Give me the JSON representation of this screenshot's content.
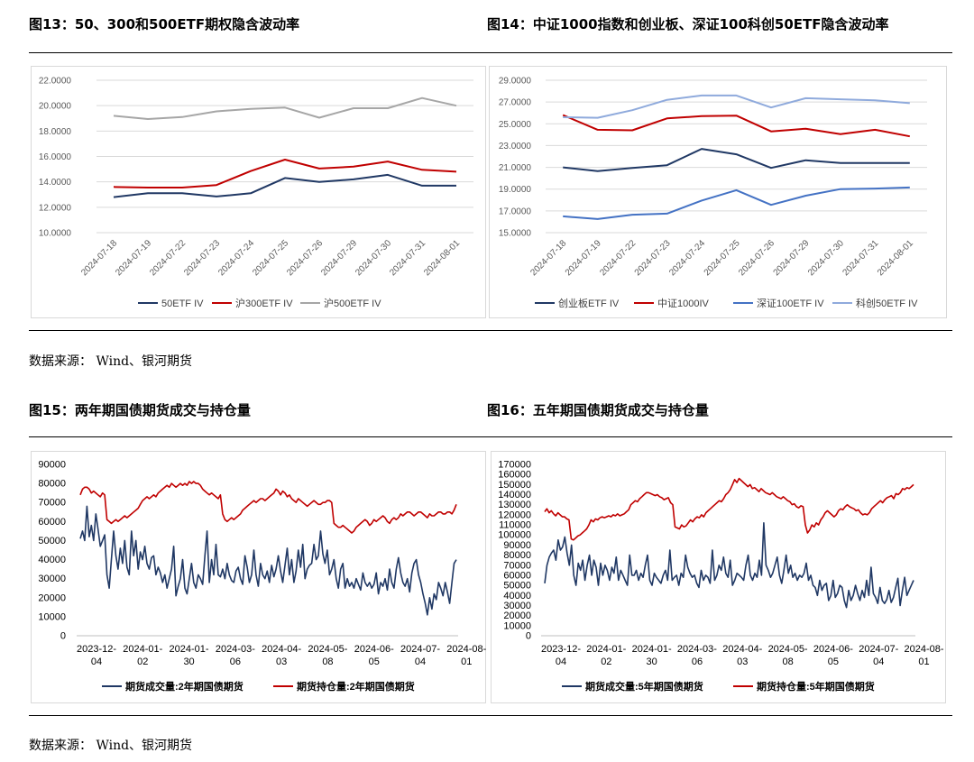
{
  "figures": {
    "f13": {
      "title": "图13：50、300和500ETF期权隐含波动率"
    },
    "f14": {
      "title": "图14：中证1000指数和创业板、深证100科创50ETF隐含波动率"
    },
    "f15": {
      "title": "图15：两年期国债期货成交与持仓量"
    },
    "f16": {
      "title": "图16：五年期国债期货成交与持仓量"
    }
  },
  "sources": {
    "top": "数据来源： Wind、银河期货",
    "bottom": "数据来源： Wind、银河期货"
  },
  "colors": {
    "navy": "#203864",
    "red": "#c00000",
    "gray": "#a6a6a6",
    "blue": "#4472c4",
    "lightblue": "#8faadc"
  },
  "chart_data": [
    {
      "id": "f13",
      "type": "line",
      "categories": [
        "2024-07-18",
        "2024-07-19",
        "2024-07-22",
        "2024-07-23",
        "2024-07-24",
        "2024-07-25",
        "2024-07-26",
        "2024-07-29",
        "2024-07-30",
        "2024-07-31",
        "2024-08-01"
      ],
      "y_ticks": [
        "10.0000",
        "12.0000",
        "14.0000",
        "16.0000",
        "18.0000",
        "20.0000",
        "22.0000"
      ],
      "ylim": [
        10,
        22
      ],
      "legend_position": "bottom",
      "series": [
        {
          "name": "50ETF IV",
          "color": "#203864",
          "values": [
            12.8,
            13.1,
            13.1,
            12.85,
            13.1,
            14.3,
            14.0,
            14.2,
            14.55,
            13.7,
            13.7
          ]
        },
        {
          "name": "沪300ETF IV",
          "color": "#c00000",
          "values": [
            13.6,
            13.55,
            13.55,
            13.75,
            14.85,
            15.75,
            15.05,
            15.2,
            15.6,
            14.95,
            14.8
          ]
        },
        {
          "name": "沪500ETF IV",
          "color": "#a6a6a6",
          "values": [
            19.2,
            18.95,
            19.1,
            19.55,
            19.75,
            19.85,
            19.05,
            19.8,
            19.8,
            20.6,
            20.0
          ]
        }
      ]
    },
    {
      "id": "f14",
      "type": "line",
      "categories": [
        "2024-07-18",
        "2024-07-19",
        "2024-07-22",
        "2024-07-23",
        "2024-07-24",
        "2024-07-25",
        "2024-07-26",
        "2024-07-29",
        "2024-07-30",
        "2024-07-31",
        "2024-08-01"
      ],
      "y_ticks": [
        "15.0000",
        "17.0000",
        "19.0000",
        "21.0000",
        "23.0000",
        "25.0000",
        "27.0000",
        "29.0000"
      ],
      "ylim": [
        15,
        29
      ],
      "legend_position": "bottom",
      "series": [
        {
          "name": "创业板ETF IV",
          "color": "#203864",
          "values": [
            21.0,
            20.65,
            20.95,
            21.2,
            22.7,
            22.2,
            20.95,
            21.65,
            21.4,
            21.4,
            21.4
          ]
        },
        {
          "name": "中证1000IV",
          "color": "#c00000",
          "values": [
            25.8,
            24.45,
            24.4,
            25.5,
            25.7,
            25.75,
            24.3,
            24.55,
            24.05,
            24.45,
            23.85
          ]
        },
        {
          "name": "深证100ETF IV",
          "color": "#4472c4",
          "values": [
            16.5,
            16.25,
            16.65,
            16.75,
            17.95,
            18.9,
            17.55,
            18.4,
            19.0,
            19.05,
            19.15
          ]
        },
        {
          "name": "科创50ETF IV",
          "color": "#8faadc",
          "values": [
            25.6,
            25.55,
            26.25,
            27.2,
            27.6,
            27.6,
            26.5,
            27.35,
            27.25,
            27.15,
            26.9
          ]
        }
      ]
    },
    {
      "id": "f15",
      "type": "line",
      "x_ticks": [
        [
          "2023-12-",
          "04"
        ],
        [
          "2024-01-",
          "02"
        ],
        [
          "2024-01-",
          "30"
        ],
        [
          "2024-03-",
          "06"
        ],
        [
          "2024-04-",
          "03"
        ],
        [
          "2024-05-",
          "08"
        ],
        [
          "2024-06-",
          "05"
        ],
        [
          "2024-07-",
          "04"
        ],
        [
          "2024-08-",
          "01"
        ]
      ],
      "y_ticks": [
        "0",
        "10000",
        "20000",
        "30000",
        "40000",
        "50000",
        "60000",
        "70000",
        "80000",
        "90000"
      ],
      "ylim": [
        0,
        90000
      ],
      "legend_position": "bottom",
      "series": [
        {
          "name": "期货成交量:2年期国债期货",
          "color": "#203864",
          "values": [
            51000,
            55000,
            50000,
            68000,
            52000,
            58000,
            50000,
            64000,
            56000,
            47000,
            50000,
            53000,
            32000,
            25000,
            40000,
            55000,
            42000,
            35000,
            46000,
            38000,
            50000,
            36000,
            32000,
            55000,
            42000,
            50000,
            35000,
            44000,
            40000,
            47000,
            38000,
            35000,
            41000,
            42000,
            32000,
            36000,
            33000,
            28000,
            32000,
            25000,
            30000,
            35000,
            47000,
            21000,
            26000,
            30000,
            40000,
            25000,
            22000,
            30000,
            38000,
            28000,
            25000,
            32000,
            30000,
            27000,
            42000,
            55000,
            28000,
            40000,
            32000,
            48000,
            32000,
            31000,
            35000,
            30000,
            38000,
            32000,
            29000,
            28000,
            34000,
            36000,
            30000,
            27000,
            42000,
            36000,
            28000,
            32000,
            45000,
            32000,
            26000,
            38000,
            32000,
            30000,
            34000,
            28000,
            37000,
            31000,
            35000,
            42000,
            34000,
            28000,
            37000,
            46000,
            32000,
            40000,
            28000,
            34000,
            45000,
            36000,
            48000,
            30000,
            35000,
            37000,
            38000,
            48000,
            40000,
            42000,
            55000,
            43000,
            38000,
            45000,
            32000,
            35000,
            40000,
            30000,
            25000,
            35000,
            38000,
            25000,
            30000,
            26000,
            28000,
            25000,
            30000,
            27000,
            24000,
            33000,
            28000,
            26000,
            28000,
            25000,
            27000,
            33000,
            22000,
            28000,
            26000,
            30000,
            24000,
            35000,
            28000,
            25000,
            35000,
            41000,
            33000,
            28000,
            26000,
            30000,
            23000,
            33000,
            38000,
            40000,
            32000,
            28000,
            22000,
            17000,
            11000,
            20000,
            14000,
            22000,
            19000,
            28000,
            25000,
            21000,
            28000,
            23000,
            17000,
            28000,
            38000,
            40000
          ]
        },
        {
          "name": "期货持仓量:2年期国债期货",
          "color": "#c00000",
          "values": [
            74000,
            77000,
            78000,
            78000,
            77000,
            75000,
            76000,
            75000,
            74000,
            73000,
            75000,
            74000,
            61000,
            60000,
            59000,
            60000,
            61000,
            60000,
            61000,
            62000,
            63000,
            62000,
            63000,
            64000,
            65000,
            66000,
            67000,
            69000,
            71000,
            72000,
            73000,
            72000,
            73000,
            74000,
            73000,
            75000,
            76000,
            77000,
            78000,
            79000,
            78000,
            80000,
            79000,
            78000,
            79000,
            80000,
            79000,
            80000,
            79000,
            81000,
            80000,
            81000,
            80000,
            80000,
            79000,
            77000,
            76000,
            75000,
            74000,
            75000,
            74000,
            73000,
            72000,
            74000,
            64000,
            61000,
            60000,
            61000,
            62000,
            61000,
            62000,
            63000,
            64000,
            66000,
            67000,
            68000,
            69000,
            70000,
            71000,
            70000,
            71000,
            72000,
            72000,
            71000,
            72000,
            73000,
            74000,
            75000,
            77000,
            76000,
            74000,
            76000,
            75000,
            73000,
            74000,
            72000,
            71000,
            70000,
            72000,
            71000,
            70000,
            69000,
            68000,
            69000,
            70000,
            71000,
            70000,
            69000,
            69000,
            70000,
            70000,
            71000,
            71000,
            70000,
            59000,
            58000,
            57000,
            57000,
            58000,
            57000,
            56000,
            55000,
            54000,
            55000,
            57000,
            58000,
            59000,
            60000,
            61000,
            60000,
            58000,
            59000,
            61000,
            60000,
            61000,
            62000,
            63000,
            62000,
            60000,
            59000,
            61000,
            62000,
            61000,
            62000,
            64000,
            63000,
            64000,
            65000,
            65000,
            64000,
            63000,
            64000,
            65000,
            65000,
            64000,
            63000,
            62000,
            64000,
            63000,
            63000,
            64000,
            65000,
            65000,
            64000,
            64000,
            65000,
            65000,
            64000,
            66000,
            69000
          ]
        }
      ]
    },
    {
      "id": "f16",
      "type": "line",
      "x_ticks": [
        [
          "2023-12-",
          "04"
        ],
        [
          "2024-01-",
          "02"
        ],
        [
          "2024-01-",
          "30"
        ],
        [
          "2024-03-",
          "06"
        ],
        [
          "2024-04-",
          "03"
        ],
        [
          "2024-05-",
          "08"
        ],
        [
          "2024-06-",
          "05"
        ],
        [
          "2024-07-",
          "04"
        ],
        [
          "2024-08-",
          "01"
        ]
      ],
      "y_ticks": [
        "0",
        "10000",
        "20000",
        "30000",
        "40000",
        "50000",
        "60000",
        "70000",
        "80000",
        "90000",
        "100000",
        "110000",
        "120000",
        "130000",
        "140000",
        "150000",
        "160000",
        "170000"
      ],
      "ylim": [
        0,
        170000
      ],
      "legend_position": "bottom",
      "series": [
        {
          "name": "期货成交量:5年期国债期货",
          "color": "#203864",
          "values": [
            52000,
            70000,
            78000,
            82000,
            85000,
            75000,
            95000,
            85000,
            88000,
            98000,
            82000,
            70000,
            90000,
            60000,
            50000,
            72000,
            65000,
            75000,
            55000,
            70000,
            80000,
            60000,
            75000,
            68000,
            50000,
            72000,
            60000,
            70000,
            65000,
            55000,
            68000,
            62000,
            78000,
            55000,
            65000,
            60000,
            55000,
            50000,
            80000,
            60000,
            60000,
            65000,
            55000,
            62000,
            58000,
            70000,
            80000,
            55000,
            50000,
            62000,
            58000,
            55000,
            52000,
            60000,
            65000,
            55000,
            85000,
            55000,
            58000,
            60000,
            50000,
            62000,
            58000,
            80000,
            68000,
            62000,
            58000,
            60000,
            52000,
            48000,
            65000,
            55000,
            60000,
            58000,
            52000,
            85000,
            55000,
            60000,
            70000,
            65000,
            78000,
            62000,
            58000,
            75000,
            50000,
            55000,
            62000,
            60000,
            58000,
            55000,
            70000,
            80000,
            60000,
            55000,
            62000,
            58000,
            75000,
            60000,
            112000,
            70000,
            65000,
            58000,
            62000,
            70000,
            78000,
            60000,
            52000,
            65000,
            80000,
            62000,
            70000,
            58000,
            62000,
            55000,
            60000,
            58000,
            62000,
            72000,
            55000,
            60000,
            50000,
            48000,
            40000,
            55000,
            45000,
            50000,
            52000,
            35000,
            40000,
            55000,
            38000,
            42000,
            50000,
            48000,
            35000,
            28000,
            45000,
            35000,
            40000,
            50000,
            42000,
            35000,
            45000,
            38000,
            55000,
            40000,
            68000,
            42000,
            38000,
            32000,
            48000,
            35000,
            32000,
            36000,
            45000,
            33000,
            38000,
            48000,
            57000,
            30000,
            45000,
            58000,
            40000,
            45000,
            50000,
            55000
          ]
        },
        {
          "name": "期货持仓量:5年期国债期货",
          "color": "#c00000",
          "values": [
            123000,
            126000,
            122000,
            124000,
            121000,
            119000,
            122000,
            120000,
            118000,
            118000,
            116000,
            115000,
            96000,
            95000,
            97000,
            99000,
            100000,
            102000,
            104000,
            106000,
            110000,
            115000,
            113000,
            116000,
            115000,
            117000,
            118000,
            117000,
            118000,
            119000,
            118000,
            120000,
            119000,
            121000,
            119000,
            120000,
            121000,
            123000,
            125000,
            130000,
            132000,
            134000,
            133000,
            136000,
            138000,
            140000,
            142000,
            142000,
            141000,
            140000,
            139000,
            140000,
            138000,
            137000,
            135000,
            136000,
            137000,
            132000,
            130000,
            108000,
            107000,
            106000,
            110000,
            108000,
            109000,
            112000,
            115000,
            113000,
            116000,
            118000,
            117000,
            120000,
            118000,
            122000,
            124000,
            126000,
            128000,
            130000,
            132000,
            134000,
            133000,
            136000,
            140000,
            142000,
            145000,
            150000,
            155000,
            152000,
            156000,
            154000,
            152000,
            150000,
            148000,
            150000,
            146000,
            147000,
            145000,
            143000,
            146000,
            144000,
            142000,
            141000,
            140000,
            142000,
            140000,
            138000,
            137000,
            136000,
            138000,
            136000,
            134000,
            133000,
            130000,
            131000,
            128000,
            127000,
            129000,
            128000,
            110000,
            102000,
            105000,
            110000,
            108000,
            112000,
            110000,
            115000,
            118000,
            122000,
            124000,
            122000,
            120000,
            118000,
            120000,
            124000,
            126000,
            125000,
            128000,
            130000,
            128000,
            127000,
            126000,
            124000,
            125000,
            122000,
            120000,
            121000,
            120000,
            122000,
            126000,
            128000,
            130000,
            132000,
            134000,
            132000,
            135000,
            137000,
            138000,
            139000,
            136000,
            141000,
            140000,
            142000,
            146000,
            145000,
            147000,
            146000,
            148000,
            150000
          ]
        }
      ]
    }
  ]
}
